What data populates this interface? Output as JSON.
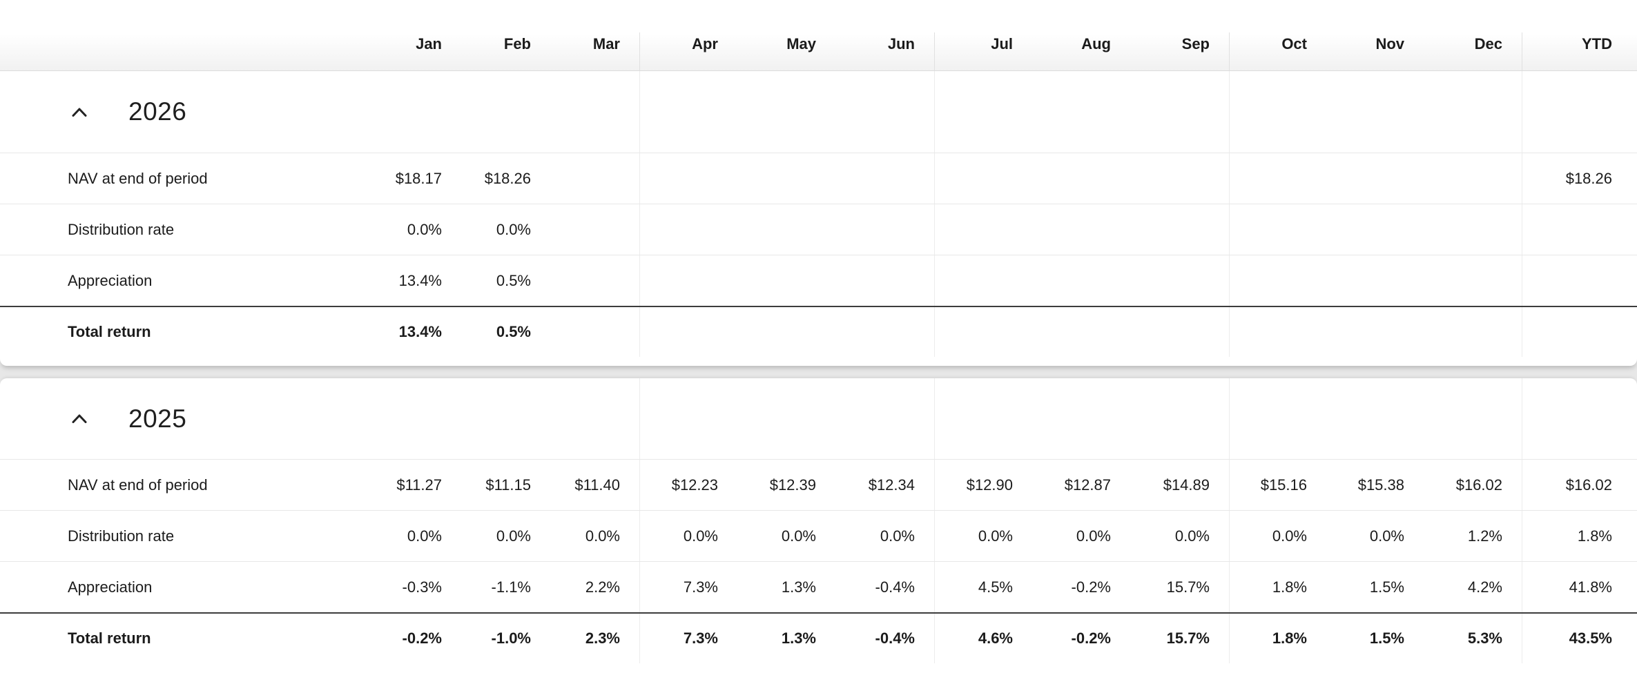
{
  "header": {
    "columns": [
      "Jan",
      "Feb",
      "Mar",
      "Apr",
      "May",
      "Jun",
      "Jul",
      "Aug",
      "Sep",
      "Oct",
      "Nov",
      "Dec",
      "YTD"
    ]
  },
  "sections": [
    {
      "year": "2026",
      "collapse_icon": "chevron-up-icon",
      "rows": [
        {
          "label": "NAV at end of period",
          "values": [
            "$18.17",
            "$18.26",
            "",
            "",
            "",
            "",
            "",
            "",
            "",
            "",
            "",
            "",
            "$18.26"
          ]
        },
        {
          "label": "Distribution rate",
          "values": [
            "0.0%",
            "0.0%",
            "",
            "",
            "",
            "",
            "",
            "",
            "",
            "",
            "",
            "",
            ""
          ]
        },
        {
          "label": "Appreciation",
          "values": [
            "13.4%",
            "0.5%",
            "",
            "",
            "",
            "",
            "",
            "",
            "",
            "",
            "",
            "",
            ""
          ]
        },
        {
          "label": "Total return",
          "values": [
            "13.4%",
            "0.5%",
            "",
            "",
            "",
            "",
            "",
            "",
            "",
            "",
            "",
            "",
            ""
          ]
        }
      ]
    },
    {
      "year": "2025",
      "collapse_icon": "chevron-up-icon",
      "rows": [
        {
          "label": "NAV at end of period",
          "values": [
            "$11.27",
            "$11.15",
            "$11.40",
            "$12.23",
            "$12.39",
            "$12.34",
            "$12.90",
            "$12.87",
            "$14.89",
            "$15.16",
            "$15.38",
            "$16.02",
            "$16.02"
          ]
        },
        {
          "label": "Distribution rate",
          "values": [
            "0.0%",
            "0.0%",
            "0.0%",
            "0.0%",
            "0.0%",
            "0.0%",
            "0.0%",
            "0.0%",
            "0.0%",
            "0.0%",
            "0.0%",
            "1.2%",
            "1.8%"
          ]
        },
        {
          "label": "Appreciation",
          "values": [
            "-0.3%",
            "-1.1%",
            "2.2%",
            "7.3%",
            "1.3%",
            "-0.4%",
            "4.5%",
            "-0.2%",
            "15.7%",
            "1.8%",
            "1.5%",
            "4.2%",
            "41.8%"
          ]
        },
        {
          "label": "Total return",
          "values": [
            "-0.2%",
            "-1.0%",
            "2.3%",
            "7.3%",
            "1.3%",
            "-0.4%",
            "4.6%",
            "-0.2%",
            "15.7%",
            "1.8%",
            "1.5%",
            "5.3%",
            "43.5%"
          ]
        }
      ]
    }
  ],
  "colors": {
    "text": "#1b1b1b",
    "row_separator": "#e8e8e8",
    "quarter_divider": "#ececec",
    "total_return_border": "#3c3c3c",
    "background_band": "#e7e7e7",
    "card_background": "#ffffff"
  }
}
